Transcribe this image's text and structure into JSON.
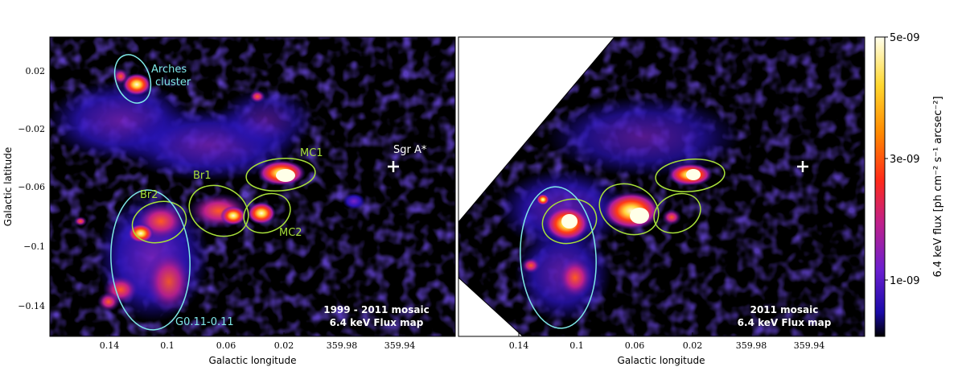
{
  "panels": [
    {
      "caption_line1": "1999 - 2011 mosaic",
      "caption_line2": "6.4 keV Flux map",
      "xlabel": "Galactic longitude",
      "ylabel": "Galactic latitude",
      "xticks": [
        "0.14",
        "0.1",
        "0.06",
        "0.02",
        "359.98",
        "359.94"
      ],
      "yticks": [
        "0.02",
        "−0.02",
        "−0.06",
        "−0.1",
        "−0.14"
      ]
    },
    {
      "caption_line1": "2011 mosaic",
      "caption_line2": "6.4 keV Flux map",
      "xlabel": "Galactic longitude",
      "xticks": [
        "0.14",
        "0.1",
        "0.06",
        "0.02",
        "359.98",
        "359.94"
      ]
    }
  ],
  "annotations": {
    "arches_line1": "Arches",
    "arches_line2": "cluster",
    "br1": "Br1",
    "br2": "Br2",
    "mc1": "MC1",
    "mc2": "MC2",
    "g011": "G0.11-0.11",
    "sgra": "Sgr A*"
  },
  "colorbar": {
    "label": "6.4 keV flux [ph cm⁻² s⁻¹ arcsec⁻²]",
    "ticks": [
      "5e-09",
      "3e-09",
      "1e-09"
    ]
  },
  "colors": {
    "cyan": "#7fe8e8",
    "green": "#a8e03a",
    "background": "#000000"
  }
}
